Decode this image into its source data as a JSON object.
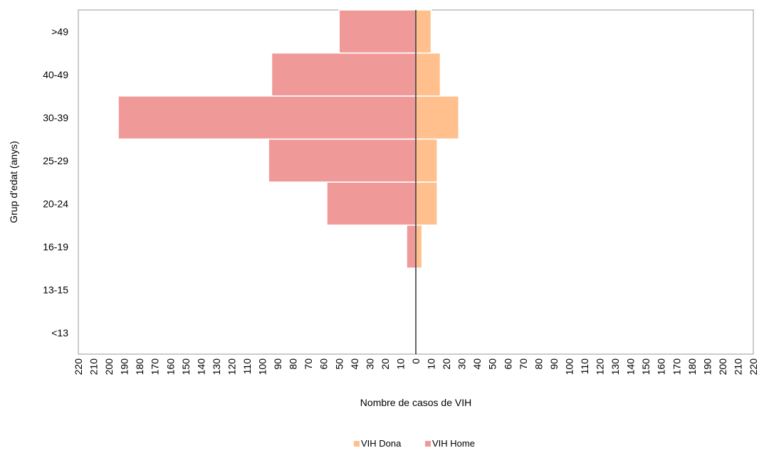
{
  "chart_data": {
    "type": "bar",
    "orientation": "horizontal-pyramid",
    "categories": [
      "<13",
      "13-15",
      "16-19",
      "20-24",
      "25-29",
      "30-39",
      "40-49",
      ">49"
    ],
    "series": [
      {
        "name": "VIH Dona",
        "side": "right",
        "color": "#FFC08E",
        "values": [
          0,
          0,
          4,
          14,
          14,
          28,
          16,
          10
        ]
      },
      {
        "name": "VIH Home",
        "side": "left",
        "color": "#EF9A98",
        "values": [
          0,
          0,
          6,
          58,
          96,
          194,
          94,
          50
        ]
      }
    ],
    "xlabel": "Nombre de casos de VIH",
    "ylabel": "Grup d'edat (anys)",
    "xlim": [
      -220,
      220
    ],
    "xticks": [
      "220",
      "210",
      "200",
      "190",
      "180",
      "170",
      "160",
      "150",
      "140",
      "130",
      "120",
      "110",
      "100",
      "90",
      "80",
      "70",
      "60",
      "50",
      "40",
      "30",
      "20",
      "10",
      "0",
      "10",
      "20",
      "30",
      "40",
      "50",
      "60",
      "70",
      "80",
      "90",
      "100",
      "110",
      "120",
      "130",
      "140",
      "150",
      "160",
      "170",
      "180",
      "190",
      "200",
      "210",
      "220"
    ],
    "grid": false,
    "legend_position": "bottom-center"
  }
}
